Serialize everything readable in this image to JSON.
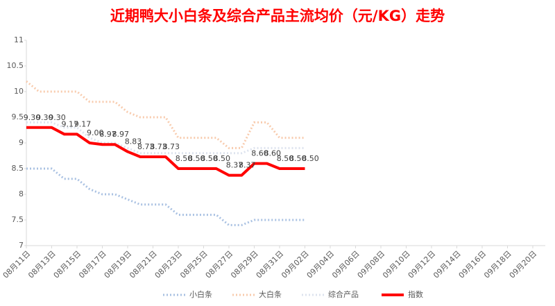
{
  "chart_data": {
    "type": "line",
    "title": "近期鸭大小白条及综合产品主流均价（元/KG）走势",
    "categories": [
      "08月11日",
      null,
      "08月13日",
      null,
      "08月15日",
      null,
      "08月17日",
      null,
      "08月19日",
      null,
      "08月21日",
      null,
      "08月23日",
      null,
      "08月25日",
      null,
      "08月27日",
      null,
      "08月29日",
      null,
      "08月31日",
      null,
      "09月02日",
      null,
      "09月04日",
      null,
      "09月06日",
      null,
      "09月08日",
      null,
      "09月10日",
      null,
      "09月12日",
      null,
      "09月14日",
      null,
      "09月16日",
      null,
      "09月18日",
      null,
      "09月20日"
    ],
    "ylim": [
      7,
      11
    ],
    "yticks": [
      7,
      7.5,
      8,
      8.5,
      9,
      9.5,
      10,
      10.5,
      11
    ],
    "grid": false,
    "legend": "bottom",
    "series": [
      {
        "name": "小白条",
        "color": "#a9c1e2",
        "style": "dotted",
        "values": [
          8.5,
          8.5,
          8.5,
          8.3,
          8.3,
          8.1,
          8.0,
          8.0,
          7.9,
          7.8,
          7.8,
          7.8,
          7.6,
          7.6,
          7.6,
          7.6,
          7.4,
          7.4,
          7.5,
          7.5,
          7.5,
          7.5,
          7.5,
          null,
          null,
          null,
          null,
          null,
          null,
          null,
          null,
          null,
          null,
          null,
          null,
          null,
          null,
          null,
          null,
          null,
          null
        ]
      },
      {
        "name": "大白条",
        "color": "#f8cbad",
        "style": "dotted",
        "values": [
          10.2,
          10.0,
          10.0,
          10.0,
          10.0,
          9.8,
          9.8,
          9.8,
          9.6,
          9.5,
          9.5,
          9.5,
          9.1,
          9.1,
          9.1,
          9.1,
          8.9,
          8.9,
          9.4,
          9.4,
          9.1,
          9.1,
          9.1,
          null,
          null,
          null,
          null,
          null,
          null,
          null,
          null,
          null,
          null,
          null,
          null,
          null,
          null,
          null,
          null,
          null,
          null
        ]
      },
      {
        "name": "综合产品",
        "color": "#dde3ee",
        "style": "dotted",
        "values": [
          9.4,
          9.4,
          9.4,
          9.3,
          9.3,
          9.1,
          9.0,
          9.0,
          8.9,
          8.8,
          8.8,
          8.8,
          8.8,
          8.8,
          8.8,
          8.8,
          8.8,
          8.8,
          8.9,
          8.9,
          8.9,
          8.9,
          8.9,
          null,
          null,
          null,
          null,
          null,
          null,
          null,
          null,
          null,
          null,
          null,
          null,
          null,
          null,
          null,
          null,
          null,
          null
        ]
      },
      {
        "name": "指数",
        "color": "#ff0000",
        "style": "solid",
        "values": [
          9.3,
          9.3,
          9.3,
          9.17,
          9.17,
          9.0,
          8.97,
          8.97,
          8.83,
          8.73,
          8.73,
          8.73,
          8.5,
          8.5,
          8.5,
          8.5,
          8.37,
          8.37,
          8.6,
          8.6,
          8.5,
          8.5,
          8.5,
          null,
          null,
          null,
          null,
          null,
          null,
          null,
          null,
          null,
          null,
          null,
          null,
          null,
          null,
          null,
          null,
          null,
          null
        ],
        "value_labels": [
          "9.30",
          "9.30",
          "9.30",
          "9.17",
          "9.17",
          "9.00",
          "8.97",
          "8.97",
          "8.83",
          "8.73",
          "8.73",
          "8.73",
          "8.50",
          "8.50",
          "8.50",
          "8.50",
          "8.37",
          "8.37",
          "8.60",
          "8.60",
          "8.50",
          "8.50",
          "8.50",
          null,
          null,
          null,
          null,
          null,
          null,
          null,
          null,
          null,
          null,
          null,
          null,
          null,
          null,
          null,
          null,
          null,
          null
        ]
      }
    ]
  }
}
